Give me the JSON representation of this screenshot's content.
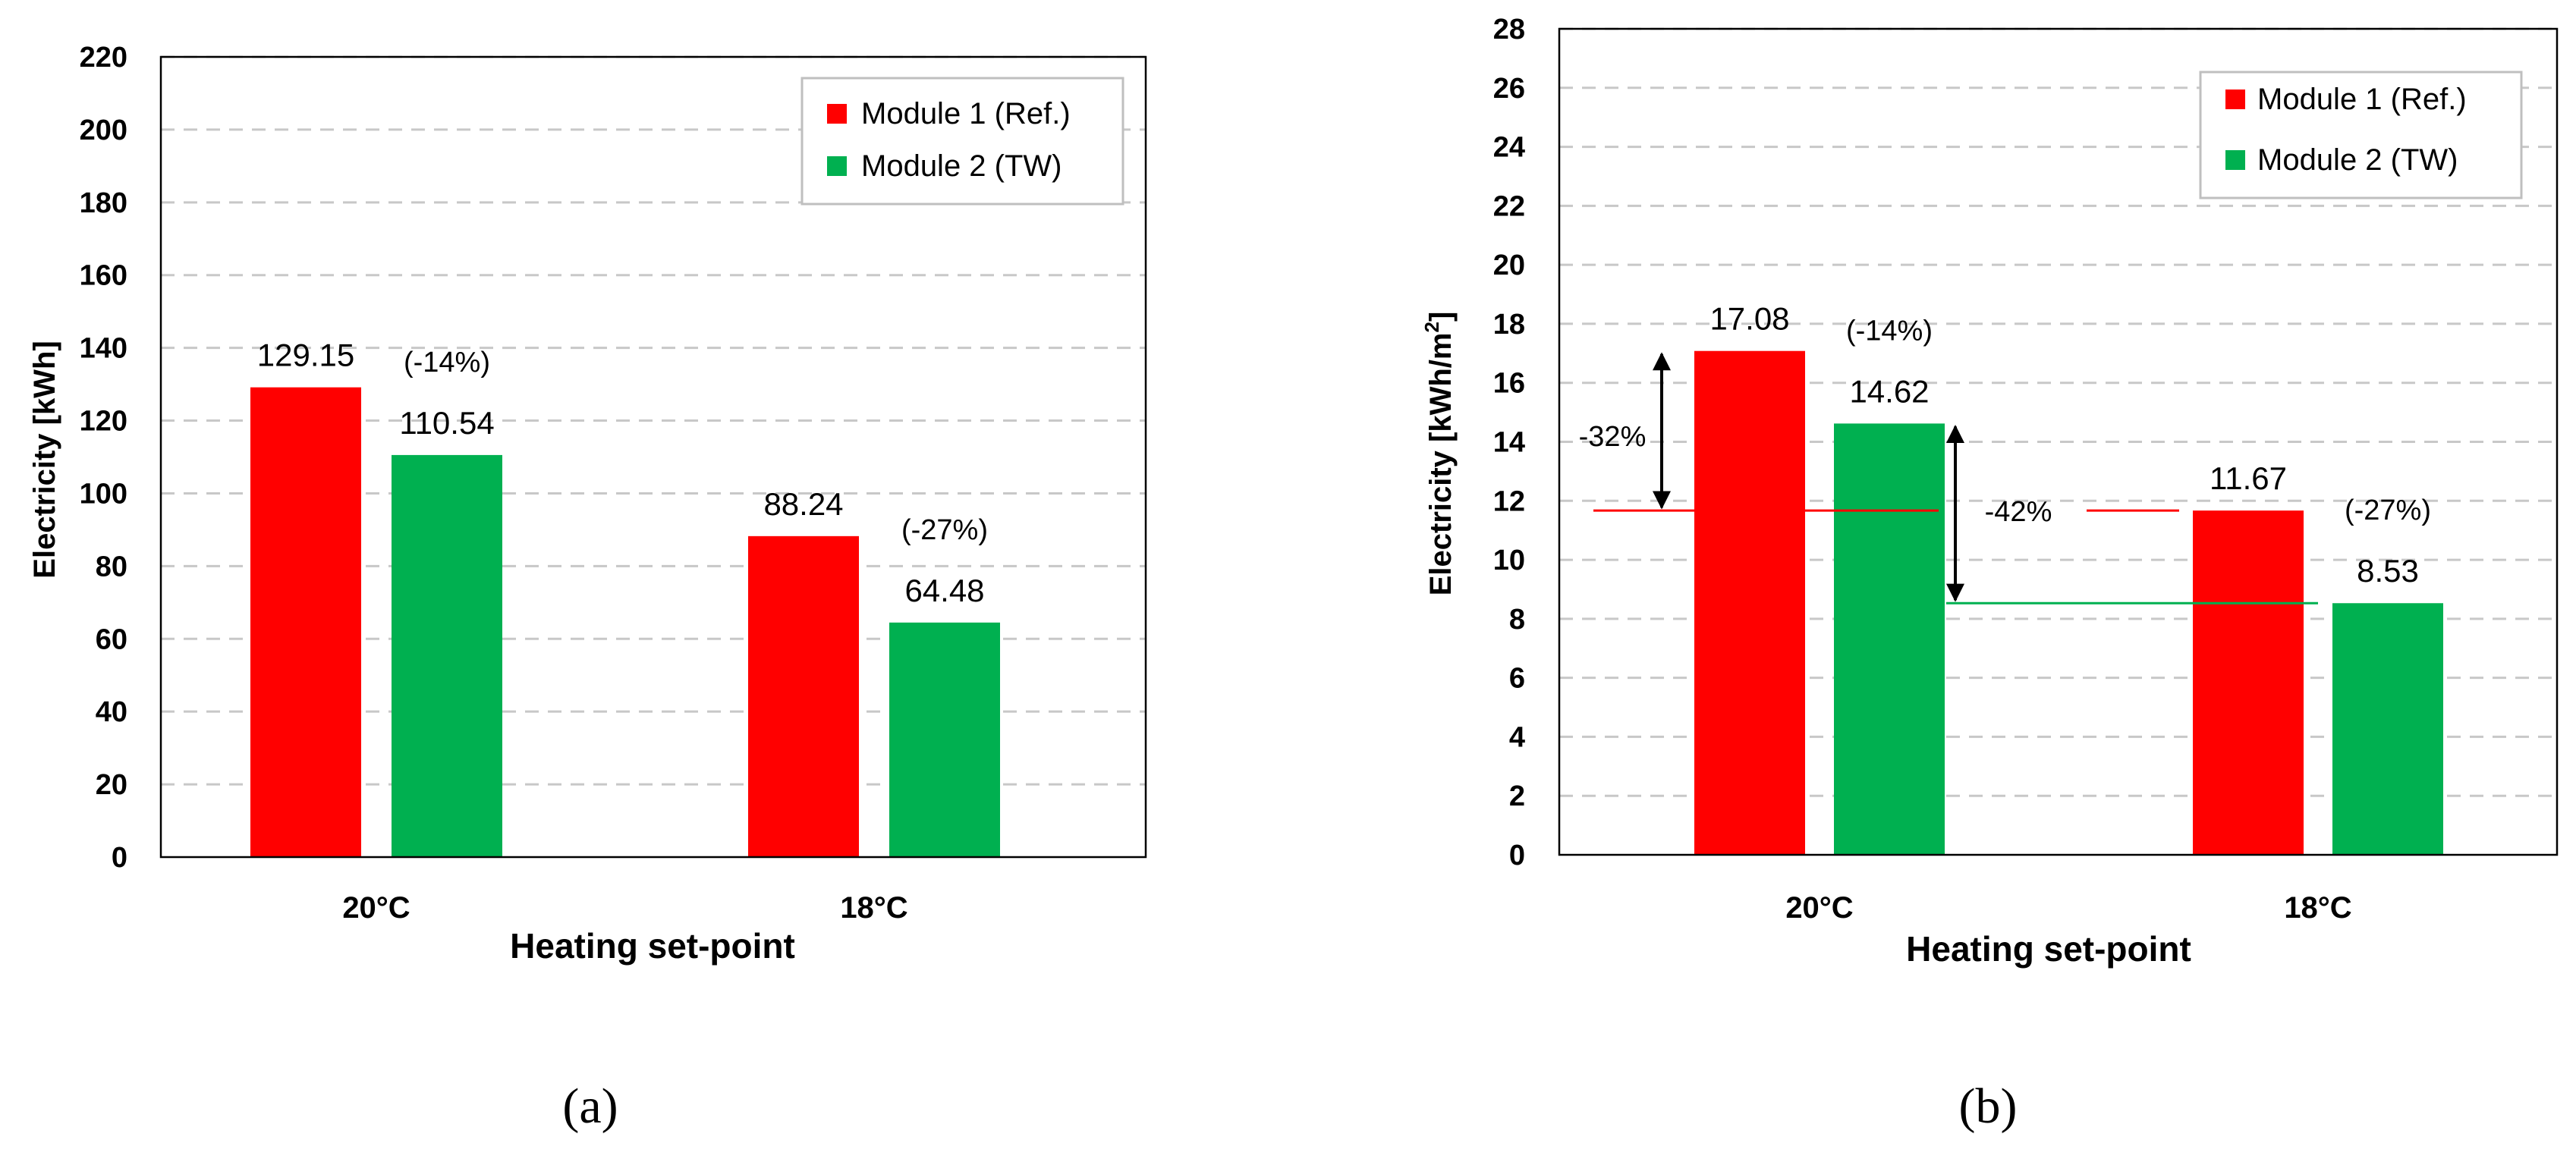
{
  "colors": {
    "module1": "#ff0000",
    "module2": "#00b050",
    "grid": "#c8c8c8",
    "axis": "#000000"
  },
  "chart_data": [
    {
      "type": "bar",
      "panel_label": "(a)",
      "title": "",
      "xlabel": "Heating set-point",
      "ylabel": "Electricity [kWh]",
      "categories": [
        "20°C",
        "18°C"
      ],
      "ylim": [
        0,
        220
      ],
      "yticks": [
        0,
        20,
        40,
        60,
        80,
        100,
        120,
        140,
        160,
        180,
        200,
        220
      ],
      "grid": true,
      "legend": "top-right",
      "series": [
        {
          "name": "Module 1 (Ref.)",
          "values": [
            129.15,
            88.24
          ],
          "labels": [
            "129.15",
            "88.24"
          ]
        },
        {
          "name": "Module 2 (TW)",
          "values": [
            110.54,
            64.48
          ],
          "labels": [
            "110.54",
            "64.48"
          ]
        }
      ],
      "annotations": [
        {
          "text": "(-14%)",
          "category": 0
        },
        {
          "text": "(-27%)",
          "category": 1
        }
      ]
    },
    {
      "type": "bar",
      "panel_label": "(b)",
      "title": "",
      "xlabel": "Heating set-point",
      "ylabel": "Electricity [kWh/m",
      "ylabel_sup": "2",
      "ylabel_end": "]",
      "categories": [
        "20°C",
        "18°C"
      ],
      "ylim": [
        0,
        28
      ],
      "yticks": [
        0,
        2,
        4,
        6,
        8,
        10,
        12,
        14,
        16,
        18,
        20,
        22,
        24,
        26,
        28
      ],
      "grid": true,
      "legend": "top-right",
      "series": [
        {
          "name": "Module 1 (Ref.)",
          "values": [
            17.08,
            11.67
          ],
          "labels": [
            "17.08",
            "11.67"
          ]
        },
        {
          "name": "Module 2 (TW)",
          "values": [
            14.62,
            8.53
          ],
          "labels": [
            "14.62",
            "8.53"
          ]
        }
      ],
      "annotations": [
        {
          "text": "(-14%)",
          "category": 0
        },
        {
          "text": "(-27%)",
          "category": 1
        },
        {
          "text": "-32%",
          "from": 17.08,
          "to": 11.67
        },
        {
          "text": "-42%",
          "from": 14.62,
          "to": 8.53
        }
      ]
    }
  ]
}
